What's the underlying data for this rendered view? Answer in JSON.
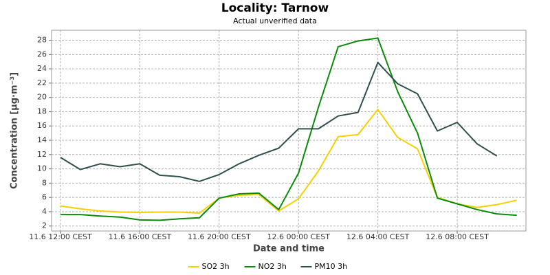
{
  "chart_data": {
    "type": "line",
    "title": "Locality: Tarnow",
    "subtitle": "Actual unverified data",
    "x_label": "Date and time",
    "y_label": "Concentration [µg·m⁻³]",
    "categories": [
      "11.6 12:00 CEST",
      null,
      null,
      null,
      "11.6 16:00 CEST",
      null,
      null,
      null,
      "11.6 20:00 CEST",
      null,
      null,
      null,
      "12.6 00:00 CEST",
      null,
      null,
      null,
      "12.6 04:00 CEST",
      null,
      null,
      null,
      "12.6 08:00 CEST",
      null,
      null,
      null
    ],
    "series": [
      {
        "name": "SO2 3h",
        "color": "#f5d000",
        "values": [
          4.8,
          4.4,
          4.1,
          3.95,
          3.9,
          3.95,
          3.95,
          3.8,
          5.9,
          6.3,
          6.4,
          4.1,
          5.8,
          9.7,
          14.5,
          14.8,
          18.3,
          14.4,
          12.8,
          6.0,
          5.1,
          4.6,
          5.0,
          5.6
        ]
      },
      {
        "name": "NO2 3h",
        "color": "#0a8a0a",
        "values": [
          3.6,
          3.6,
          3.4,
          3.25,
          2.85,
          2.8,
          3.0,
          3.15,
          5.9,
          6.5,
          6.6,
          4.3,
          9.4,
          18.6,
          27.1,
          27.9,
          28.3,
          20.8,
          15.0,
          5.9,
          5.1,
          4.3,
          3.7,
          3.5
        ]
      },
      {
        "name": "PM10 3h",
        "color": "#2f4f4f",
        "values": [
          11.6,
          9.9,
          10.7,
          10.3,
          10.7,
          9.1,
          8.9,
          8.25,
          9.2,
          10.7,
          11.9,
          12.9,
          15.6,
          15.6,
          17.4,
          17.9,
          24.9,
          21.9,
          20.5,
          15.3,
          16.5,
          13.5,
          11.8,
          null
        ]
      }
    ],
    "ylim": [
      1.3,
      29.4
    ],
    "yticks": [
      2,
      4,
      6,
      8,
      10,
      12,
      14,
      16,
      18,
      20,
      22,
      24,
      26,
      28
    ],
    "grid": true,
    "legend": "bottom"
  }
}
